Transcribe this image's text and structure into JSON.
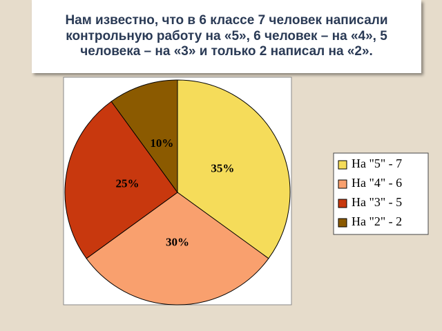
{
  "chart_data": {
    "type": "pie",
    "title": "Нам известно, что в 6 классе 7 человек написали контрольную работу на «5», 6 человек – на «4», 5 человека – на «3» и только 2 написал на «2».",
    "categories": [
      "На \"5\" - 7",
      "На \"4\" - 6",
      "На \"3\" - 5",
      "На \"2\" - 2"
    ],
    "values": [
      35,
      30,
      25,
      10
    ],
    "value_labels": [
      "35%",
      "30%",
      "25%",
      "10%"
    ],
    "colors": [
      "#f5dc5a",
      "#f9a06e",
      "#c8380e",
      "#8b5a00"
    ],
    "legend": "right"
  }
}
